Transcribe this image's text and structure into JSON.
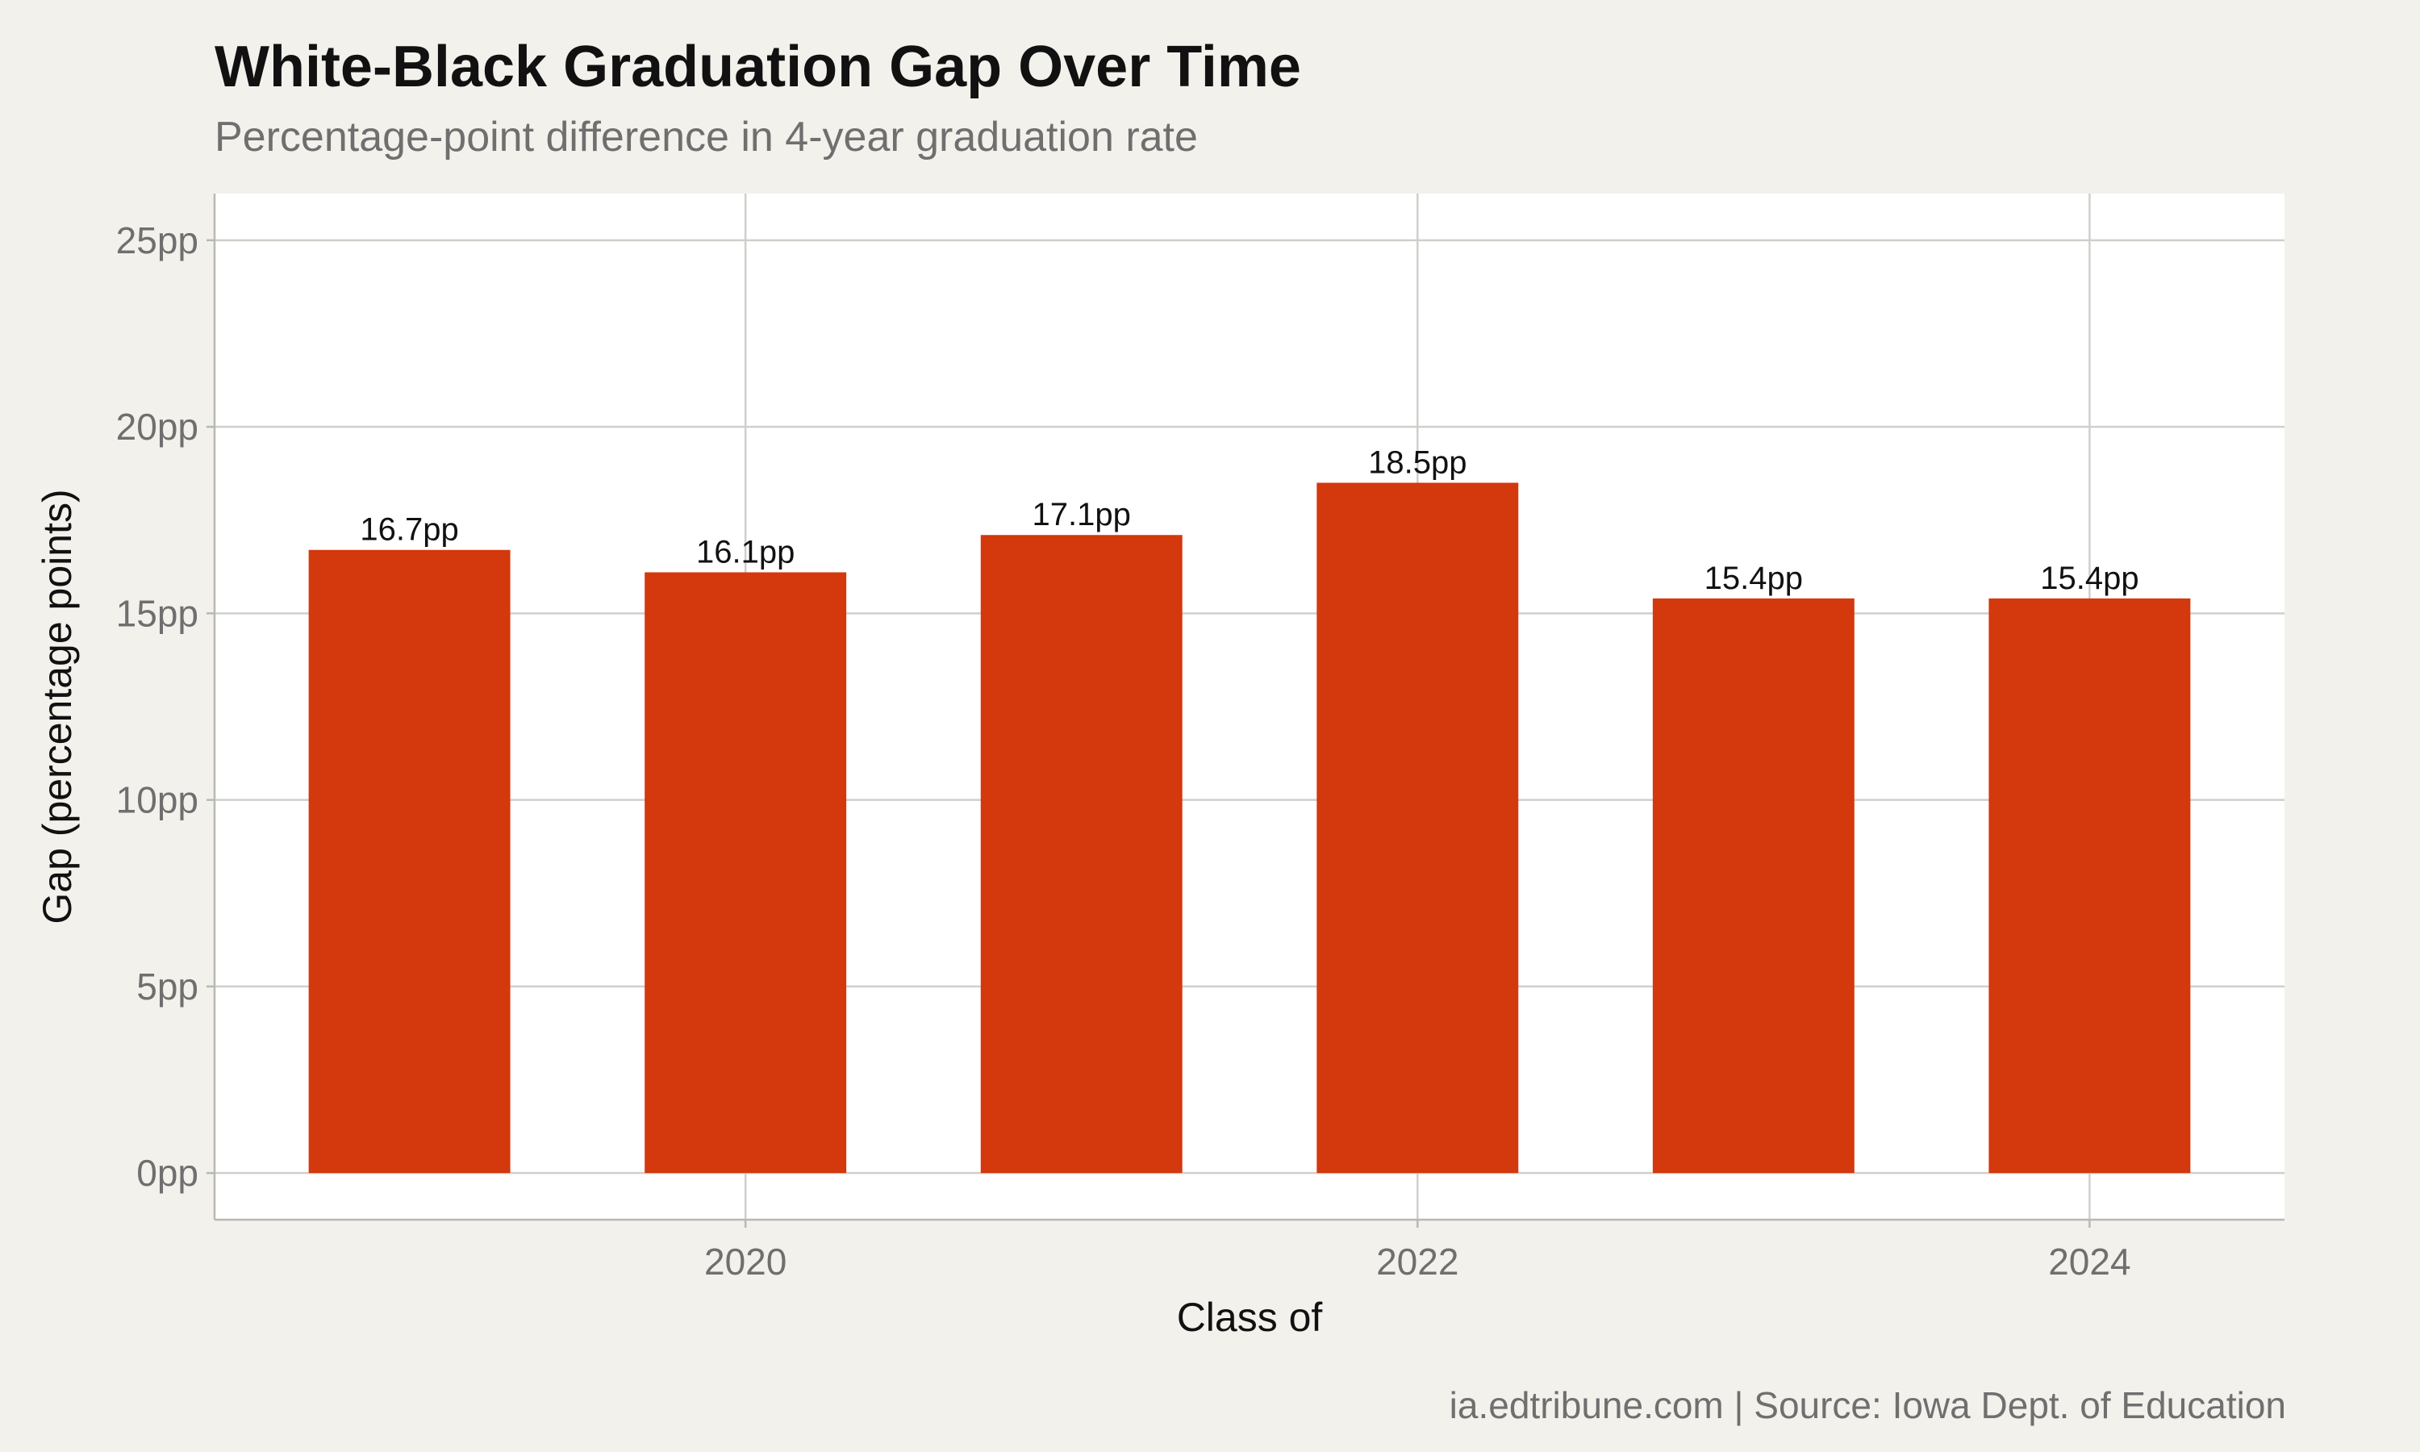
{
  "chart_data": {
    "type": "bar",
    "title": "White-Black Graduation Gap Over Time",
    "subtitle": "Percentage-point difference in 4-year graduation rate",
    "xlabel": "Class of",
    "ylabel": "Gap (percentage points)",
    "caption": "ia.edtribune.com | Source: Iowa Dept. of Education",
    "categories": [
      2019,
      2020,
      2021,
      2022,
      2023,
      2024
    ],
    "values": [
      16.7,
      16.1,
      17.1,
      18.5,
      15.4,
      15.4
    ],
    "data_labels": [
      "16.7pp",
      "16.1pp",
      "17.1pp",
      "18.5pp",
      "15.4pp",
      "15.4pp"
    ],
    "x_ticks": [
      2020,
      2022,
      2024
    ],
    "x_tick_labels": [
      "2020",
      "2022",
      "2024"
    ],
    "y_ticks": [
      0,
      5,
      10,
      15,
      20,
      25
    ],
    "y_tick_labels": [
      "0pp",
      "5pp",
      "10pp",
      "15pp",
      "20pp",
      "25pp"
    ],
    "xlim": [
      2018.42,
      2024.58
    ],
    "ylim": [
      -1.25,
      26.25
    ],
    "grid": true,
    "bar_color": "#d4380d",
    "panel_color": "#ffffff",
    "background_color": "#f3f1ec",
    "grid_color": "#cfcfcb"
  }
}
